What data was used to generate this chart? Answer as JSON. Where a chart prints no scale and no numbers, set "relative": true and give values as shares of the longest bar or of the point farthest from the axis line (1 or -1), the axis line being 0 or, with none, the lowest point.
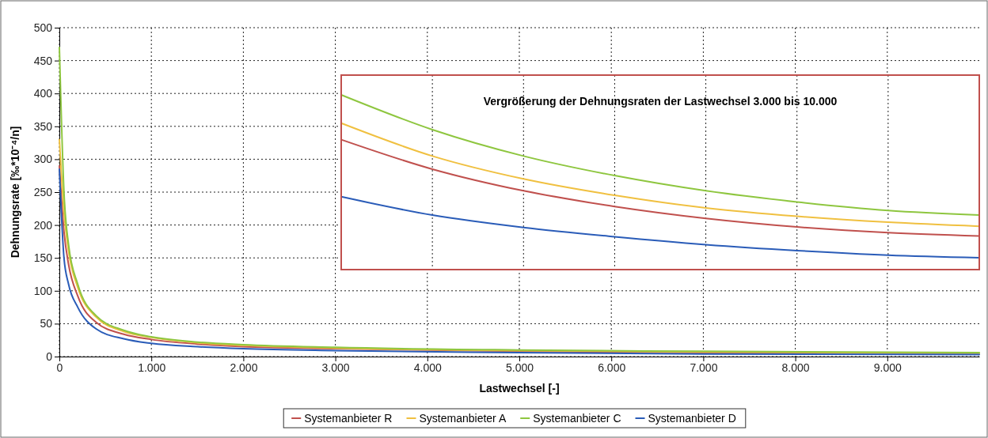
{
  "chart_data": [
    {
      "type": "line",
      "xlabel": "Lastwechsel [-]",
      "ylabel": "Dehnungsrate [‰*10⁻⁴/n]",
      "xlim": [
        0,
        10000
      ],
      "ylim": [
        0,
        500
      ],
      "xticks": [
        0,
        {
          "value": 1000,
          "label": "1.000"
        },
        {
          "value": 2000,
          "label": "2.000"
        },
        {
          "value": 3000,
          "label": "3.000"
        },
        {
          "value": 4000,
          "label": "4.000"
        },
        {
          "value": 5000,
          "label": "5.000"
        },
        {
          "value": 6000,
          "label": "6.000"
        },
        {
          "value": 7000,
          "label": "7.000"
        },
        {
          "value": 8000,
          "label": "8.000"
        },
        {
          "value": 9000,
          "label": "9.000"
        }
      ],
      "yticks": [
        0,
        50,
        100,
        150,
        200,
        250,
        300,
        350,
        400,
        450,
        500
      ],
      "grid": true,
      "legend": "bottom",
      "line_style": "solid",
      "x": [
        0,
        50,
        100,
        200,
        400,
        700,
        1000,
        1500,
        2000,
        3000,
        5000,
        7000,
        10000
      ],
      "series": [
        {
          "name": "Systemanbieter R",
          "color": "#c0504d",
          "values": [
            290,
            190,
            140,
            92,
            52,
            34,
            26,
            19,
            15,
            12,
            8,
            6,
            5
          ]
        },
        {
          "name": "Systemanbieter A",
          "color": "#f0c040",
          "values": [
            330,
            220,
            160,
            105,
            60,
            38,
            29,
            21,
            17,
            13,
            9,
            7,
            5
          ]
        },
        {
          "name": "Systemanbieter C",
          "color": "#8ec63f",
          "values": [
            470,
            250,
            170,
            110,
            62,
            40,
            30,
            22,
            18,
            14,
            10,
            8,
            6
          ]
        },
        {
          "name": "Systemanbieter D",
          "color": "#2a5cb8",
          "values": [
            285,
            150,
            110,
            75,
            42,
            27,
            20,
            15,
            12,
            9,
            6,
            4,
            3
          ]
        }
      ]
    },
    {
      "type": "line",
      "title": "Vergrößerung der Dehnungsraten der Lastwechsel 3.000 bis 10.000",
      "relative": true,
      "tick_labels": false,
      "grid": "x",
      "line_style": "solid",
      "categories": [
        null,
        null,
        null,
        null,
        null,
        null,
        null,
        null
      ],
      "series": [
        {
          "color": "#c0504d",
          "values": [
            0.744,
            0.575,
            0.451,
            0.361,
            0.293,
            0.244,
            0.211,
            0.192
          ]
        },
        {
          "color": "#f0c040",
          "values": [
            0.838,
            0.65,
            0.519,
            0.425,
            0.353,
            0.305,
            0.271,
            0.248
          ]
        },
        {
          "color": "#8ec63f",
          "values": [
            1,
            0.801,
            0.65,
            0.538,
            0.451,
            0.387,
            0.338,
            0.312
          ]
        },
        {
          "color": "#2a5cb8",
          "values": [
            0.417,
            0.312,
            0.241,
            0.188,
            0.143,
            0.109,
            0.083,
            0.068
          ]
        }
      ]
    }
  ]
}
